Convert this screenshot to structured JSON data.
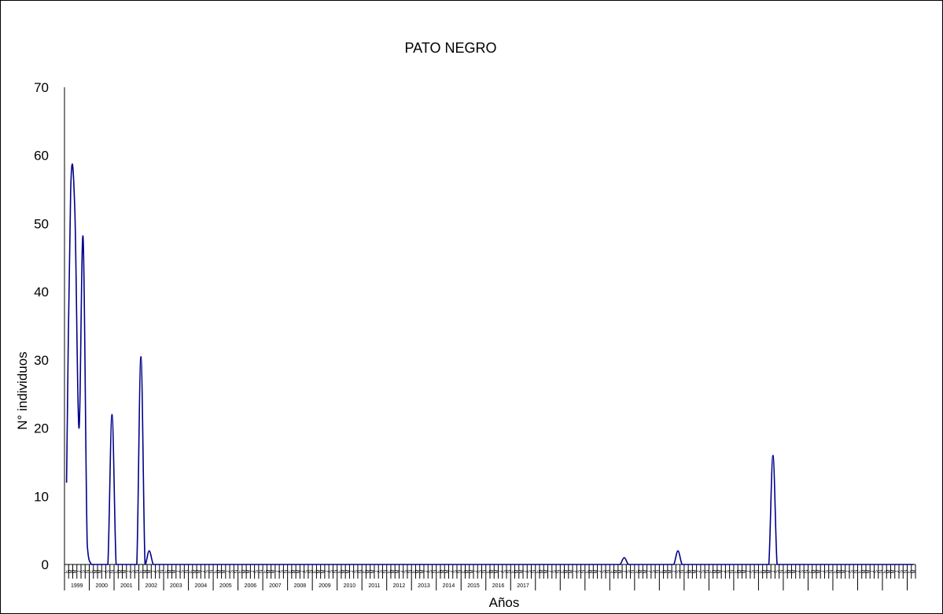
{
  "chart_data": {
    "type": "line",
    "title": "PATO NEGRO",
    "xlabel": "Años",
    "ylabel": "N° individuos",
    "ylim": [
      0,
      70
    ],
    "yticks": [
      0,
      10,
      20,
      30,
      40,
      50,
      60,
      70
    ],
    "grid": false,
    "legend": "none",
    "line_color": "#00008B",
    "months_per_year": [
      "E",
      "M",
      "M",
      "J",
      "S",
      "N"
    ],
    "years": [
      "1999",
      "2000",
      "2001",
      "2002",
      "2003",
      "2004",
      "2005",
      "2006",
      "2007",
      "2008",
      "2009",
      "2010",
      "2011",
      "2012",
      "2013",
      "2014",
      "2015",
      "2016",
      "2017"
    ],
    "series": [
      {
        "values": [
          12,
          55,
          52,
          20,
          48,
          3,
          0,
          0,
          0,
          0,
          0,
          22,
          0,
          0,
          0,
          0,
          0,
          0,
          30.5,
          0,
          2,
          0,
          0,
          0,
          0,
          0,
          0,
          0,
          0,
          0,
          0,
          0,
          0,
          0,
          0,
          0,
          0,
          0,
          0,
          0,
          0,
          0,
          0,
          0,
          0,
          0,
          0,
          0,
          0,
          0,
          0,
          0,
          0,
          0,
          0,
          0,
          0,
          0,
          0,
          0,
          0,
          0,
          0,
          0,
          0,
          0,
          0,
          0,
          0,
          0,
          0,
          0,
          0,
          0,
          0,
          0,
          0,
          0,
          0,
          0,
          0,
          0,
          0,
          0,
          0,
          0,
          0,
          0,
          0,
          0,
          0,
          0,
          0,
          0,
          0,
          0,
          0,
          0,
          0,
          0,
          0,
          0,
          0,
          0,
          0,
          0,
          0,
          0,
          0,
          0,
          0,
          0,
          0,
          0,
          0,
          0,
          0,
          0,
          0,
          0,
          0,
          0,
          0,
          0,
          0,
          0,
          0,
          0,
          0,
          0,
          0,
          0,
          0,
          0,
          0,
          1,
          0,
          0,
          0,
          0,
          0,
          0,
          0,
          0,
          0,
          0,
          0,
          0,
          2,
          0,
          0,
          0,
          0,
          0,
          0,
          0,
          0,
          0,
          0,
          0,
          0,
          0,
          0,
          0,
          0,
          0,
          0,
          0,
          0,
          0,
          0,
          16,
          0,
          0,
          0,
          0,
          0,
          0,
          0,
          0,
          0,
          0,
          0,
          0,
          0,
          0,
          0,
          0,
          0,
          0,
          0,
          0,
          0,
          0,
          0,
          0,
          0,
          0,
          0,
          0,
          0,
          0,
          0,
          0,
          0,
          0
        ]
      }
    ]
  }
}
